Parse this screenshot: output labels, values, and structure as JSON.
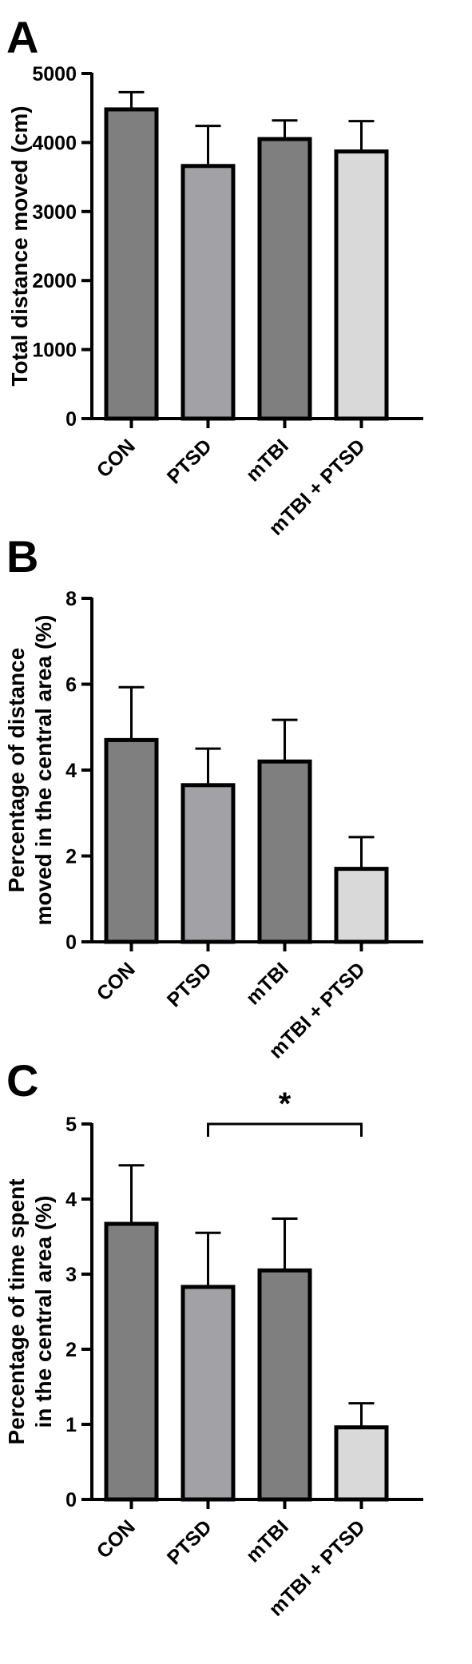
{
  "chart_data": [
    {
      "type": "bar",
      "panel": "A",
      "categories": [
        "CON",
        "PTSD",
        "mTBI",
        "mTBI + PTSD"
      ],
      "values": [
        4480,
        3660,
        4050,
        3870
      ],
      "errors": [
        250,
        580,
        270,
        440
      ],
      "ylabel": "Total distance moved (cm)",
      "ylim": [
        0,
        5000
      ],
      "yticks": [
        "0",
        "1000",
        "2000",
        "3000",
        "4000",
        "5000"
      ],
      "bar_colors": [
        "#7f7f7f",
        "#a2a2a6",
        "#7f7f7f",
        "#d9d9d9"
      ],
      "grid": false
    },
    {
      "type": "bar",
      "panel": "B",
      "categories": [
        "CON",
        "PTSD",
        "mTBI",
        "mTBI + PTSD"
      ],
      "values": [
        4.7,
        3.65,
        4.2,
        1.7
      ],
      "errors": [
        1.23,
        0.85,
        0.97,
        0.74
      ],
      "ylabel_lines": [
        "Percentage of distance",
        "moved in the central area (%)"
      ],
      "ylim": [
        0,
        8
      ],
      "yticks": [
        "0",
        "2",
        "4",
        "6",
        "8"
      ],
      "bar_colors": [
        "#7f7f7f",
        "#a2a2a6",
        "#7f7f7f",
        "#d9d9d9"
      ],
      "grid": false
    },
    {
      "type": "bar",
      "panel": "C",
      "categories": [
        "CON",
        "PTSD",
        "mTBI",
        "mTBI + PTSD"
      ],
      "values": [
        3.67,
        2.83,
        3.05,
        0.96
      ],
      "errors": [
        0.78,
        0.72,
        0.69,
        0.32
      ],
      "ylabel_lines": [
        "Percentage of time spent",
        "in the central area (%)"
      ],
      "ylim": [
        0,
        5
      ],
      "yticks": [
        "0",
        "1",
        "2",
        "3",
        "4",
        "5"
      ],
      "bar_colors": [
        "#7f7f7f",
        "#a2a2a6",
        "#7f7f7f",
        "#d9d9d9"
      ],
      "grid": false,
      "significance": {
        "between": [
          "PTSD",
          "mTBI + PTSD"
        ],
        "label": "*"
      }
    }
  ]
}
